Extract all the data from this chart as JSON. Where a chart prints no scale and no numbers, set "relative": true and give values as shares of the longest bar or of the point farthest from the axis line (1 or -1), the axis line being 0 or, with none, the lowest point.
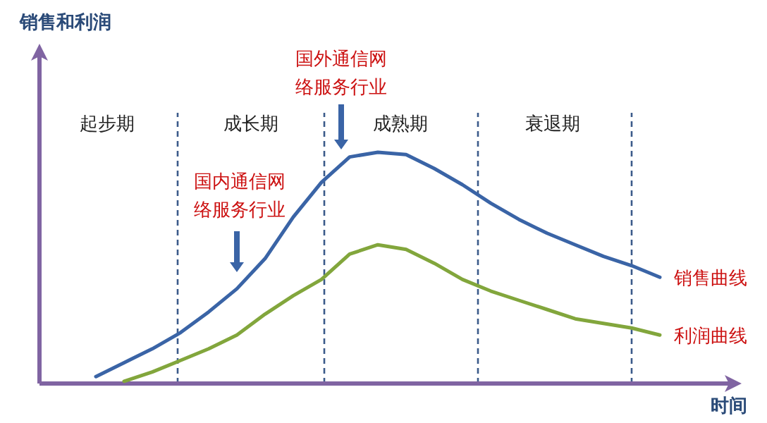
{
  "chart_data": {
    "type": "line",
    "relative": true,
    "xlabel": "时间",
    "categories": [
      null,
      null,
      null,
      null,
      null,
      null,
      null,
      null,
      null,
      null,
      null,
      null,
      null,
      null,
      null,
      null,
      null,
      null,
      null,
      null,
      null
    ],
    "series": [
      {
        "name": "销售曲线",
        "color": "#3a64a6",
        "values": [
          0.03,
          0.09,
          0.15,
          0.22,
          0.31,
          0.41,
          0.54,
          0.72,
          0.87,
          0.98,
          1,
          0.99,
          0.93,
          0.86,
          0.78,
          0.71,
          0.65,
          0.6,
          0.55,
          0.51,
          0.46
        ]
      },
      {
        "name": "利润曲线",
        "color": "#82a63c",
        "values": [
          null,
          0.01,
          0.05,
          0.1,
          0.15,
          0.21,
          0.3,
          0.38,
          0.45,
          0.56,
          0.6,
          0.58,
          0.52,
          0.45,
          0.4,
          0.36,
          0.32,
          0.28,
          0.26,
          0.24,
          0.21
        ]
      }
    ],
    "annotations": [
      "销售和利润",
      "起步期",
      "成长期",
      "成熟期",
      "衰退期",
      "国内通信网络服务行业",
      "国外通信网络服务行业"
    ]
  }
}
